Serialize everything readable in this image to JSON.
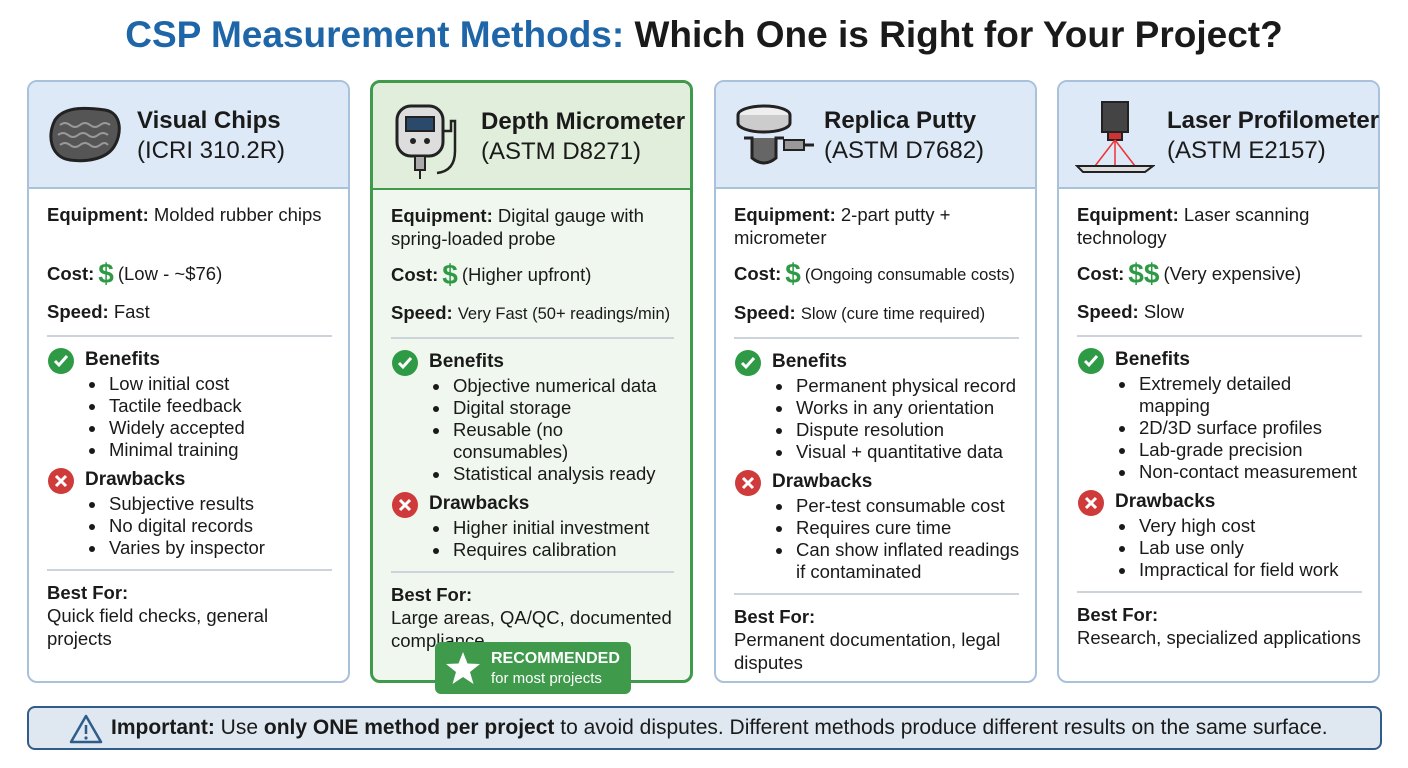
{
  "title": {
    "lead": "CSP Measurement Methods:",
    "rest": "Which One is Right for Your Project?"
  },
  "labels": {
    "equipment": "Equipment:",
    "cost": "Cost:",
    "speed": "Speed:",
    "benefits": "Benefits",
    "drawbacks": "Drawbacks",
    "best_for": "Best For:"
  },
  "cards": [
    {
      "name": "Visual Chips",
      "standard": "(ICRI 310.2R)",
      "equipment": "Molded rubber chips",
      "cost_symbol": "$",
      "cost_note": "(Low - ~$76)",
      "speed": "Fast",
      "benefits": [
        "Low initial cost",
        "Tactile feedback",
        "Widely accepted",
        "Minimal training"
      ],
      "drawbacks": [
        "Subjective results",
        "No digital records",
        "Varies by inspector"
      ],
      "best_for": "Quick field checks, general projects"
    },
    {
      "name": "Depth Micrometer",
      "standard": "(ASTM D8271)",
      "equipment": "Digital gauge with spring-loaded probe",
      "cost_symbol": "$",
      "cost_note": "(Higher upfront)",
      "speed": "Very Fast (50+ readings/min)",
      "benefits": [
        "Objective numerical data",
        "Digital storage",
        "Reusable (no consumables)",
        "Statistical analysis ready"
      ],
      "drawbacks": [
        "Higher initial investment",
        "Requires calibration"
      ],
      "best_for": "Large areas, QA/QC, documented compliance",
      "badge": {
        "title": "RECOMMENDED",
        "subtitle": "for most projects"
      }
    },
    {
      "name": "Replica Putty",
      "standard": "(ASTM D7682)",
      "equipment": "2-part putty + micrometer",
      "cost_symbol": "$",
      "cost_note": "(Ongoing consumable costs)",
      "speed": "Slow (cure time required)",
      "benefits": [
        "Permanent physical record",
        "Works in any orientation",
        "Dispute resolution",
        "Visual + quantitative data"
      ],
      "drawbacks": [
        "Per-test consumable cost",
        "Requires cure time",
        "Can show inflated readings if contaminated"
      ],
      "best_for": "Permanent documentation, legal disputes"
    },
    {
      "name": "Laser Profilometer",
      "standard": "(ASTM E2157)",
      "equipment": "Laser scanning technology",
      "cost_symbol": "$$",
      "cost_note": "(Very expensive)",
      "speed": "Slow",
      "benefits": [
        "Extremely detailed mapping",
        "2D/3D surface profiles",
        "Lab-grade precision",
        "Non-contact measurement"
      ],
      "drawbacks": [
        "Very high cost",
        "Lab use only",
        "Impractical for field work"
      ],
      "best_for": "Research, specialized applications"
    }
  ],
  "footer": {
    "label": "Important:",
    "text_before": "Use",
    "emphasis": "only ONE method per project",
    "text_after": "to avoid disputes. Different methods produce different results on the same surface."
  }
}
